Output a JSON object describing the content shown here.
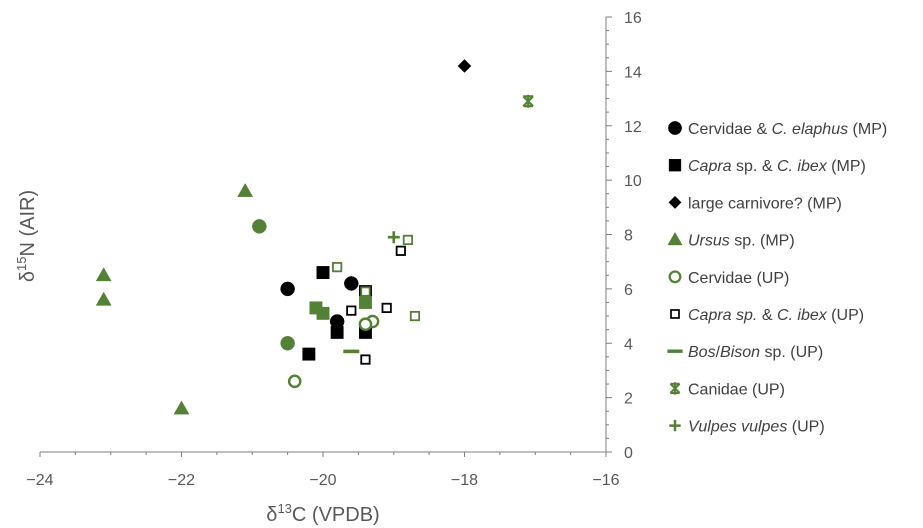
{
  "chart_data": {
    "type": "scatter",
    "title": "",
    "xlabel": "δ13C (VPDB)",
    "ylabel": "δ15N (AIR)",
    "xlim": [
      -24,
      -16
    ],
    "ylim": [
      0,
      16
    ],
    "x_ticks": [
      -24,
      -22,
      -20,
      -18,
      -16
    ],
    "y_ticks": [
      0,
      2,
      4,
      6,
      8,
      10,
      12,
      14,
      16
    ],
    "grid": false,
    "legend_position": "right",
    "series": [
      {
        "name": "Cervidae & C. elaphus (MP)",
        "legend_parts": [
          {
            "text": "Cervidae & ",
            "italic": false
          },
          {
            "text": "C. elaphus",
            "italic": true
          },
          {
            "text": " (MP)",
            "italic": false
          }
        ],
        "marker": "circle",
        "fill": "#000000",
        "stroke": "#000000",
        "hollow": false,
        "points": [
          [
            -20.5,
            6.0
          ],
          [
            -19.6,
            6.2
          ],
          [
            -19.8,
            4.8
          ]
        ]
      },
      {
        "name": "Capra sp. & C. ibex (MP)",
        "legend_parts": [
          {
            "text": "Capra",
            "italic": true
          },
          {
            "text": " sp. & ",
            "italic": false
          },
          {
            "text": "C. ibex",
            "italic": true
          },
          {
            "text": " (MP)",
            "italic": false
          }
        ],
        "marker": "square",
        "fill": "#000000",
        "stroke": "#000000",
        "hollow": false,
        "points": [
          [
            -20.0,
            6.6
          ],
          [
            -19.4,
            5.9
          ],
          [
            -19.8,
            4.4
          ],
          [
            -19.4,
            4.4
          ],
          [
            -20.2,
            3.6
          ]
        ]
      },
      {
        "name": "large carnivore? (MP)",
        "legend_parts": [
          {
            "text": "large carnivore? (MP)",
            "italic": false
          }
        ],
        "marker": "diamond",
        "fill": "#000000",
        "stroke": "#000000",
        "hollow": false,
        "points": [
          [
            -18.0,
            14.2
          ]
        ]
      },
      {
        "name": "Ursus sp. (MP)",
        "legend_parts": [
          {
            "text": "Ursus",
            "italic": true
          },
          {
            "text": " sp. (MP)",
            "italic": false
          }
        ],
        "marker": "triangle",
        "fill": "#538135",
        "stroke": "#538135",
        "hollow": false,
        "points": [
          [
            -21.1,
            9.6
          ],
          [
            -23.1,
            6.5
          ],
          [
            -23.1,
            5.6
          ],
          [
            -22.0,
            1.6
          ],
          [
            -20.9,
            8.3
          ],
          [
            -20.5,
            4.0
          ],
          [
            -20.1,
            5.3
          ],
          [
            -20.0,
            5.1
          ],
          [
            -19.4,
            5.5
          ]
        ],
        "point_markers": [
          "triangle",
          "triangle",
          "triangle",
          "triangle",
          "circle",
          "circle",
          "square",
          "square",
          "square"
        ]
      },
      {
        "name": "Cervidae (UP)",
        "legend_parts": [
          {
            "text": "Cervidae (UP)",
            "italic": false
          }
        ],
        "marker": "circle",
        "fill": "none",
        "stroke": "#538135",
        "hollow": true,
        "points": [
          [
            -20.4,
            2.6
          ],
          [
            -19.3,
            4.8
          ],
          [
            -19.4,
            4.7
          ]
        ]
      },
      {
        "name": "Capra sp. & C. ibex (UP)",
        "legend_parts": [
          {
            "text": "Capra sp.",
            "italic": true
          },
          {
            "text": " & ",
            "italic": false
          },
          {
            "text": "C. ibex",
            "italic": true
          },
          {
            "text": " (UP)",
            "italic": false
          }
        ],
        "marker": "square",
        "fill": "none",
        "stroke": "#000000",
        "hollow": true,
        "points": [
          [
            -19.6,
            5.2
          ],
          [
            -19.1,
            5.3
          ],
          [
            -19.4,
            3.4
          ],
          [
            -18.9,
            7.4
          ],
          [
            -19.8,
            6.8
          ],
          [
            -18.8,
            7.8
          ],
          [
            -18.7,
            5.0
          ],
          [
            -19.4,
            5.9
          ]
        ],
        "point_strokes": [
          "#000000",
          "#000000",
          "#000000",
          "#000000",
          "#538135",
          "#538135",
          "#538135",
          "#538135"
        ]
      },
      {
        "name": "Bos/Bison sp. (UP)",
        "legend_parts": [
          {
            "text": "Bos",
            "italic": true
          },
          {
            "text": "/",
            "italic": false
          },
          {
            "text": "Bison",
            "italic": true
          },
          {
            "text": " sp. (UP)",
            "italic": false
          }
        ],
        "marker": "dash",
        "fill": "#538135",
        "stroke": "#538135",
        "hollow": false,
        "points": [
          [
            -19.6,
            3.7
          ]
        ]
      },
      {
        "name": "Canidae (UP)",
        "legend_parts": [
          {
            "text": "Canidae (UP)",
            "italic": false
          }
        ],
        "marker": "asterisk",
        "fill": "none",
        "stroke": "#538135",
        "hollow": false,
        "points": [
          [
            -17.1,
            12.9
          ]
        ]
      },
      {
        "name": "Vulpes vulpes (UP)",
        "legend_parts": [
          {
            "text": "Vulpes vulpes",
            "italic": true
          },
          {
            "text": " (UP)",
            "italic": false
          }
        ],
        "marker": "plus",
        "fill": "none",
        "stroke": "#538135",
        "hollow": false,
        "points": [
          [
            -19.0,
            7.9
          ]
        ]
      }
    ]
  }
}
